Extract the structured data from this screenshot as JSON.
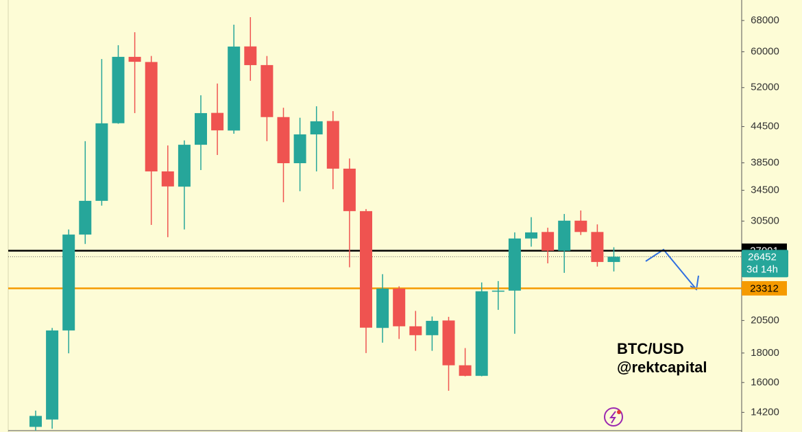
{
  "chart_data": {
    "type": "candlestick",
    "yscale": "log",
    "ylim": [
      13200,
      73800
    ],
    "yticks": [
      14200,
      16000,
      18000,
      20500,
      30500,
      34500,
      38500,
      44500,
      52000,
      60000,
      68000
    ],
    "up_color": "#26a69a",
    "down_color": "#ef5350",
    "open": [
      13400,
      13800,
      19700,
      28900,
      33070,
      45100,
      58800,
      57600,
      37200,
      35000,
      41380,
      47000,
      43800,
      61300,
      56900,
      46220,
      38440,
      43130,
      45500,
      37610,
      31740,
      19900,
      23290,
      20030,
      19330,
      20500,
      17140,
      16430,
      23000,
      23100,
      28450,
      29200,
      27090,
      30550,
      29200,
      25900
    ],
    "high": [
      14300,
      19900,
      29500,
      41980,
      58290,
      61600,
      64880,
      59000,
      41270,
      42100,
      50430,
      52850,
      66870,
      68910,
      59000,
      47980,
      46100,
      48260,
      47330,
      39170,
      32000,
      24670,
      23500,
      21300,
      20830,
      20800,
      18360,
      23870,
      24000,
      29150,
      30980,
      29700,
      31380,
      31820,
      30100,
      27470
    ],
    "low": [
      13200,
      13300,
      17980,
      27840,
      32440,
      45000,
      46960,
      30040,
      28600,
      29500,
      37400,
      39720,
      43240,
      53430,
      41980,
      32890,
      34370,
      37200,
      34650,
      25360,
      18000,
      18760,
      19040,
      18160,
      18160,
      15480,
      16400,
      16400,
      21390,
      19440,
      27540,
      25760,
      24800,
      28850,
      25430,
      24940
    ],
    "close": [
      14000,
      19700,
      28900,
      33070,
      45080,
      58800,
      57650,
      37200,
      35030,
      41380,
      46960,
      43830,
      61270,
      56890,
      46220,
      38440,
      43130,
      45450,
      37610,
      31740,
      19920,
      23290,
      20030,
      19330,
      20470,
      17140,
      16430,
      23040,
      23100,
      28450,
      29150,
      27090,
      30550,
      29200,
      25900,
      26452
    ],
    "price_lines": [
      {
        "value": 27091,
        "color": "#000000"
      },
      {
        "value": 23312,
        "color": "#f59a00"
      }
    ],
    "last_price": 26452,
    "countdown": "3d 14h",
    "annotations": [
      "BTC/USD",
      "@rektcapital"
    ]
  }
}
